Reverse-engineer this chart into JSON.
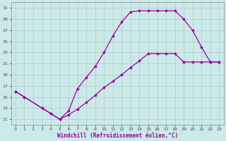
{
  "xlabel": "Windchill (Refroidissement éolien,°C)",
  "xlim": [
    -0.5,
    23.5
  ],
  "ylim": [
    10,
    32
  ],
  "xticks": [
    0,
    1,
    2,
    3,
    4,
    5,
    6,
    7,
    8,
    9,
    10,
    11,
    12,
    13,
    14,
    15,
    16,
    17,
    18,
    19,
    20,
    21,
    22,
    23
  ],
  "yticks": [
    11,
    13,
    15,
    17,
    19,
    21,
    23,
    25,
    27,
    29,
    31
  ],
  "bg_color": "#cce9e9",
  "line_color": "#990099",
  "grid_color": "#b0c8c8",
  "curve1_x": [
    0,
    1,
    3,
    4,
    5,
    6,
    7,
    8,
    9,
    10,
    11,
    12,
    13,
    14,
    15,
    16,
    17,
    18,
    19,
    20,
    21,
    22,
    23
  ],
  "curve1_y": [
    16,
    15,
    13,
    12,
    11,
    12.5,
    16.5,
    18.5,
    20.5,
    23,
    26,
    28.5,
    30.3,
    30.5,
    30.5,
    30.5,
    30.5,
    30.5,
    29,
    27,
    24,
    21.3,
    21.3
  ],
  "curve2_x": [
    0,
    1,
    3,
    4,
    5,
    6,
    7,
    8,
    9,
    10,
    11,
    12,
    13,
    14,
    15,
    16,
    17,
    18,
    19,
    20,
    21,
    22,
    23
  ],
  "curve2_y": [
    16,
    15,
    13,
    12,
    11,
    11.8,
    12.8,
    14.0,
    15.3,
    16.7,
    17.8,
    19.0,
    20.3,
    21.5,
    22.8,
    22.8,
    22.8,
    22.8,
    21.3,
    21.3,
    21.3,
    21.3,
    21.3
  ],
  "marker_size": 2.0,
  "line_width": 0.9,
  "tick_fontsize": 4.5,
  "xlabel_fontsize": 5.5
}
